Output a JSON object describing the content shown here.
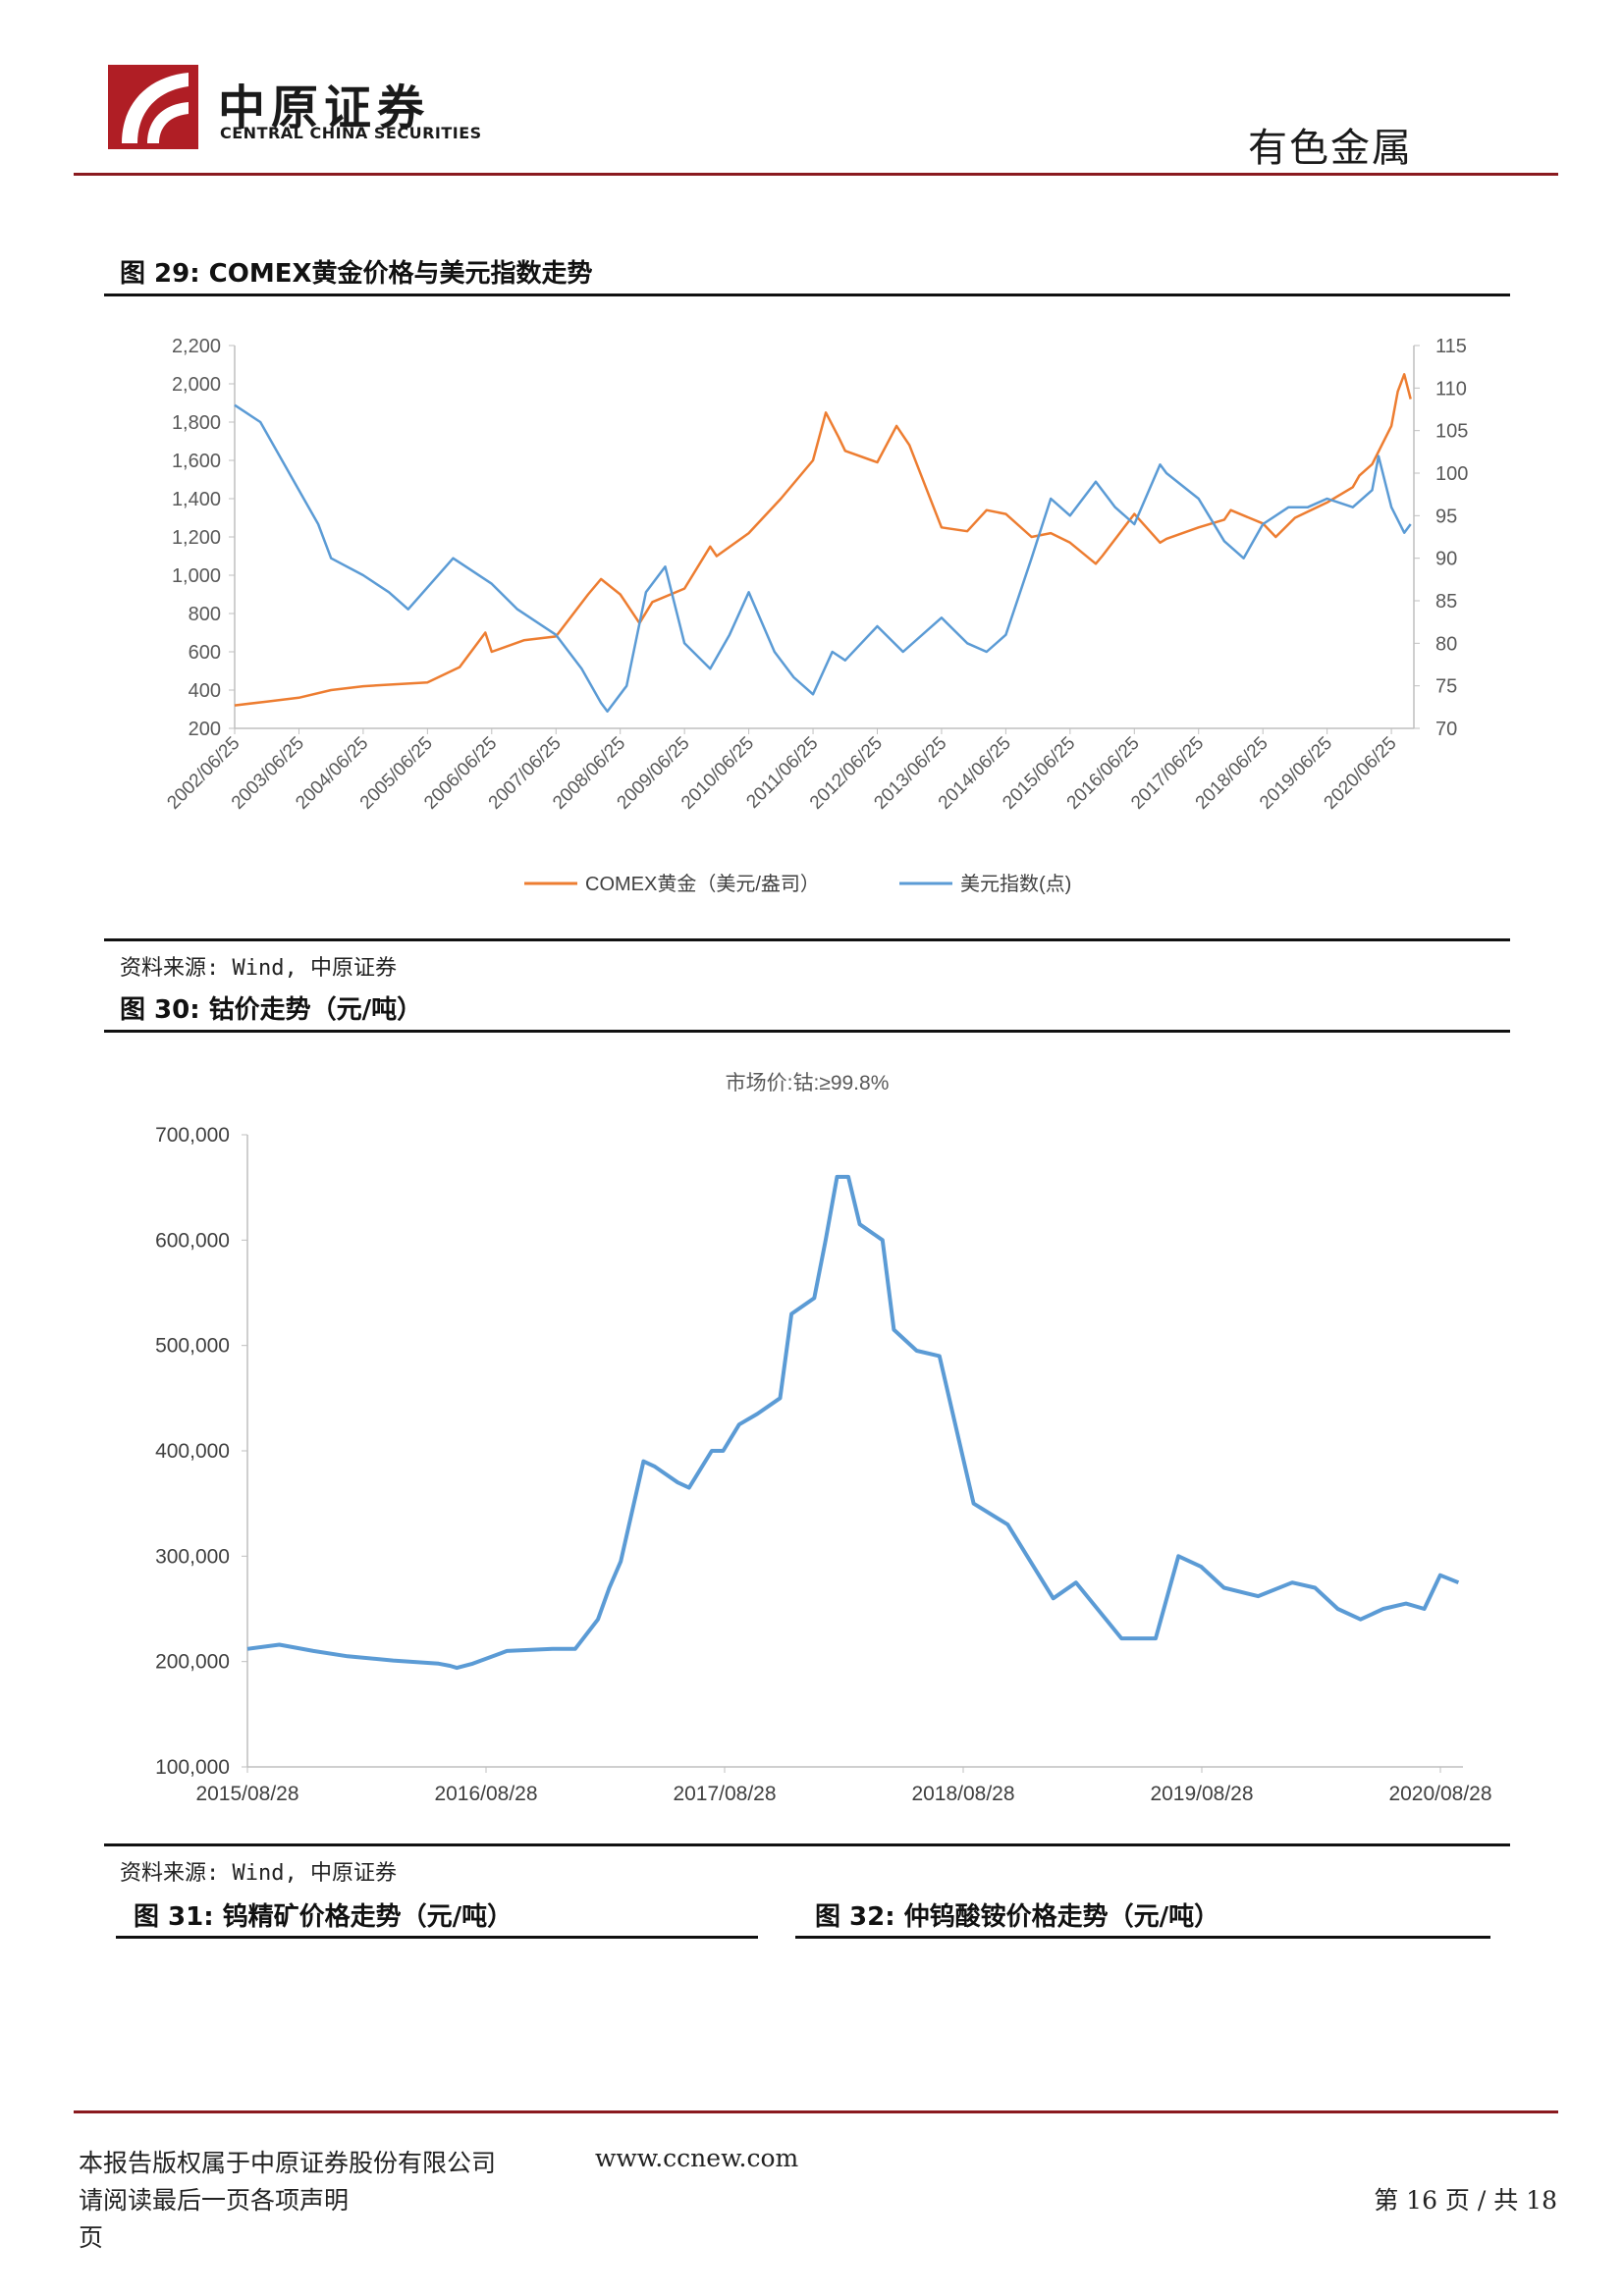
{
  "header": {
    "brand_cn": "中原证券",
    "brand_en": "CENTRAL CHINA SECURITIES",
    "sector": "有色金属"
  },
  "fig29": {
    "title": "图 29:  COMEX黄金价格与美元指数走势",
    "source": "资料来源: Wind, 中原证券",
    "chart_data": {
      "type": "line",
      "x_ticks": [
        "2002/06/25",
        "2003/06/25",
        "2004/06/25",
        "2005/06/25",
        "2006/06/25",
        "2007/06/25",
        "2008/06/25",
        "2009/06/25",
        "2010/06/25",
        "2011/06/25",
        "2012/06/25",
        "2013/06/25",
        "2014/06/25",
        "2015/06/25",
        "2016/06/25",
        "2017/06/25",
        "2018/06/25",
        "2019/06/25",
        "2020/06/25"
      ],
      "y_left_ticks": [
        "2,200",
        "2,000",
        "1,800",
        "1,600",
        "1,400",
        "1,200",
        "1,000",
        "800",
        "600",
        "400",
        "200"
      ],
      "y_right_ticks": [
        "115",
        "110",
        "105",
        "100",
        "95",
        "90",
        "85",
        "80",
        "75",
        "70"
      ],
      "ylim_left": [
        200,
        2200
      ],
      "ylim_right": [
        70,
        115
      ],
      "legend_position": "bottom",
      "series": [
        {
          "name": "COMEX黄金（美元/盎司）",
          "axis": "left",
          "color": "#ED7D31",
          "x": [
            2002.5,
            2003.0,
            2003.5,
            2004.0,
            2004.5,
            2005.0,
            2005.5,
            2006.0,
            2006.4,
            2006.5,
            2007.0,
            2007.5,
            2008.0,
            2008.2,
            2008.5,
            2008.8,
            2009.0,
            2009.5,
            2009.9,
            2010.0,
            2010.5,
            2011.0,
            2011.5,
            2011.7,
            2011.9,
            2012.0,
            2012.5,
            2012.8,
            2013.0,
            2013.3,
            2013.5,
            2013.9,
            2014.2,
            2014.5,
            2014.9,
            2015.2,
            2015.5,
            2015.9,
            2016.0,
            2016.5,
            2016.9,
            2017.0,
            2017.5,
            2017.9,
            2018.0,
            2018.5,
            2018.7,
            2019.0,
            2019.5,
            2019.9,
            2020.0,
            2020.2,
            2020.5,
            2020.6,
            2020.7,
            2020.8
          ],
          "y": [
            320,
            340,
            360,
            400,
            420,
            430,
            440,
            520,
            700,
            600,
            660,
            680,
            900,
            980,
            900,
            750,
            860,
            930,
            1150,
            1100,
            1220,
            1400,
            1600,
            1850,
            1720,
            1650,
            1590,
            1780,
            1680,
            1420,
            1250,
            1230,
            1340,
            1320,
            1200,
            1220,
            1170,
            1060,
            1100,
            1320,
            1170,
            1190,
            1250,
            1290,
            1340,
            1270,
            1200,
            1300,
            1380,
            1460,
            1520,
            1580,
            1780,
            1960,
            2050,
            1920
          ]
        },
        {
          "name": "美元指数(点)",
          "axis": "right",
          "color": "#5B9BD5",
          "x": [
            2002.5,
            2002.9,
            2003.5,
            2003.8,
            2004.0,
            2004.5,
            2004.9,
            2005.2,
            2005.9,
            2006.5,
            2006.9,
            2007.5,
            2007.9,
            2008.2,
            2008.3,
            2008.6,
            2008.9,
            2009.2,
            2009.5,
            2009.9,
            2010.2,
            2010.5,
            2010.9,
            2011.2,
            2011.5,
            2011.8,
            2012.0,
            2012.5,
            2012.9,
            2013.5,
            2013.9,
            2014.2,
            2014.5,
            2014.9,
            2015.2,
            2015.5,
            2015.9,
            2016.2,
            2016.5,
            2016.9,
            2017.0,
            2017.5,
            2017.9,
            2018.2,
            2018.5,
            2018.9,
            2019.2,
            2019.5,
            2019.9,
            2020.2,
            2020.3,
            2020.5,
            2020.7,
            2020.8
          ],
          "y": [
            108,
            106,
            98,
            94,
            90,
            88,
            86,
            84,
            90,
            87,
            84,
            81,
            77,
            73,
            72,
            75,
            86,
            89,
            80,
            77,
            81,
            86,
            79,
            76,
            74,
            79,
            78,
            82,
            79,
            83,
            80,
            79,
            81,
            90,
            97,
            95,
            99,
            96,
            94,
            101,
            100,
            97,
            92,
            90,
            94,
            96,
            96,
            97,
            96,
            98,
            102,
            96,
            93,
            94
          ]
        }
      ]
    }
  },
  "fig30": {
    "title": "图 30:  钴价走势（元/吨）",
    "source": "资料来源: Wind, 中原证券",
    "chart_data": {
      "type": "line",
      "title": "市场价:钴:≥99.8%",
      "x_ticks": [
        "2015/08/28",
        "2016/08/28",
        "2017/08/28",
        "2018/08/28",
        "2019/08/28",
        "2020/08/28"
      ],
      "y_ticks": [
        "700,000",
        "600,000",
        "500,000",
        "400,000",
        "300,000",
        "200,000",
        "100,000"
      ],
      "ylim": [
        100000,
        700000
      ],
      "series": [
        {
          "color": "#5B9BD5",
          "x": [
            2015.66,
            2015.8,
            2015.95,
            2016.1,
            2016.3,
            2016.5,
            2016.55,
            2016.58,
            2016.65,
            2016.8,
            2017.0,
            2017.1,
            2017.2,
            2017.25,
            2017.3,
            2017.4,
            2017.45,
            2017.55,
            2017.6,
            2017.7,
            2017.75,
            2017.82,
            2017.9,
            2018.0,
            2018.05,
            2018.15,
            2018.2,
            2018.25,
            2018.3,
            2018.35,
            2018.45,
            2018.5,
            2018.6,
            2018.7,
            2018.85,
            2019.0,
            2019.2,
            2019.3,
            2019.5,
            2019.65,
            2019.75,
            2019.85,
            2019.95,
            2020.1,
            2020.25,
            2020.35,
            2020.45,
            2020.55,
            2020.65,
            2020.75,
            2020.83,
            2020.9,
            2020.98
          ],
          "y": [
            212000,
            216000,
            210000,
            205000,
            201000,
            198000,
            196000,
            194000,
            198000,
            210000,
            212000,
            212000,
            240000,
            270000,
            295000,
            390000,
            385000,
            370000,
            365000,
            400000,
            400000,
            425000,
            435000,
            450000,
            530000,
            545000,
            600000,
            660000,
            660000,
            615000,
            600000,
            515000,
            495000,
            490000,
            350000,
            330000,
            260000,
            275000,
            222000,
            222000,
            300000,
            290000,
            270000,
            262000,
            275000,
            270000,
            250000,
            240000,
            250000,
            255000,
            250000,
            282000,
            275000
          ]
        }
      ]
    }
  },
  "fig31": {
    "title": "图 31:  钨精矿价格走势（元/吨）"
  },
  "fig32": {
    "title": "图 32:  仲钨酸铵价格走势（元/吨）"
  },
  "footer": {
    "copyright": "本报告版权属于中原证券股份有限公司",
    "website": "www.ccnew.com",
    "disclaimer": "请阅读最后一页各项声明",
    "page_num": "第 16 页 / 共 18",
    "page_suffix": "页"
  }
}
